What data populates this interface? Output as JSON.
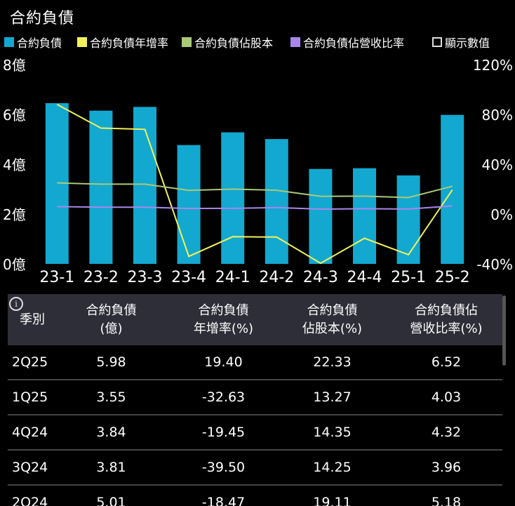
{
  "title": "合約負債",
  "legend": [
    {
      "label": "合約負債",
      "color": "#13a8cf",
      "kind": "square"
    },
    {
      "label": "合約負債年增率",
      "color": "#f2f25a",
      "kind": "square"
    },
    {
      "label": "合約負債佔股本",
      "color": "#a9c979",
      "kind": "square"
    },
    {
      "label": "合約負債佔營收比率",
      "color": "#a987ea",
      "kind": "square"
    },
    {
      "label": "顯示數值",
      "color": "#dddddd",
      "kind": "checkbox"
    }
  ],
  "chart_data": {
    "type": "bar",
    "categories": [
      "23-1",
      "23-2",
      "23-3",
      "23-4",
      "24-1",
      "24-2",
      "24-3",
      "24-4",
      "25-1",
      "25-2"
    ],
    "left_axis": {
      "ticks": [
        "0億",
        "2億",
        "4億",
        "6億",
        "8億"
      ],
      "ylim": [
        0,
        8
      ]
    },
    "right_axis": {
      "ticks": [
        "-40%",
        "0%",
        "40%",
        "80%",
        "120%"
      ],
      "ylim": [
        -40,
        120
      ]
    },
    "series": [
      {
        "name": "合約負債",
        "type": "bar",
        "axis": "left",
        "color": "#13a8cf",
        "values": [
          6.45,
          6.15,
          6.3,
          4.77,
          5.28,
          5.01,
          3.81,
          3.84,
          3.55,
          5.98
        ]
      },
      {
        "name": "合約負債年增率",
        "type": "line",
        "axis": "right",
        "color": "#f2f25a",
        "values": [
          88,
          69,
          68,
          -34,
          -18.2,
          -18.47,
          -39.5,
          -19.45,
          -32.63,
          19.4
        ]
      },
      {
        "name": "合約負債佔股本",
        "type": "line",
        "axis": "right",
        "color": "#a9c979",
        "values": [
          25,
          24,
          24,
          19,
          20,
          19.11,
          14.25,
          14.35,
          13.27,
          22.33
        ]
      },
      {
        "name": "合約負債佔營收比率",
        "type": "line",
        "axis": "right",
        "color": "#a987ea",
        "values": [
          6,
          5.5,
          5.5,
          4.5,
          4.6,
          5.18,
          3.96,
          4.32,
          4.03,
          6.52
        ]
      }
    ]
  },
  "table": {
    "info_icon": "i",
    "headers": [
      "季別",
      "合約負債\n(億)",
      "合約負債\n年增率(%)",
      "合約負債\n佔股本(%)",
      "合約負債佔\n營收比率(%)"
    ],
    "rows": [
      [
        "2Q25",
        "5.98",
        "19.40",
        "22.33",
        "6.52"
      ],
      [
        "1Q25",
        "3.55",
        "-32.63",
        "13.27",
        "4.03"
      ],
      [
        "4Q24",
        "3.84",
        "-19.45",
        "14.35",
        "4.32"
      ],
      [
        "3Q24",
        "3.81",
        "-39.50",
        "14.25",
        "3.96"
      ],
      [
        "2Q24",
        "5.01",
        "-18.47",
        "19.11",
        "5.18"
      ]
    ]
  }
}
